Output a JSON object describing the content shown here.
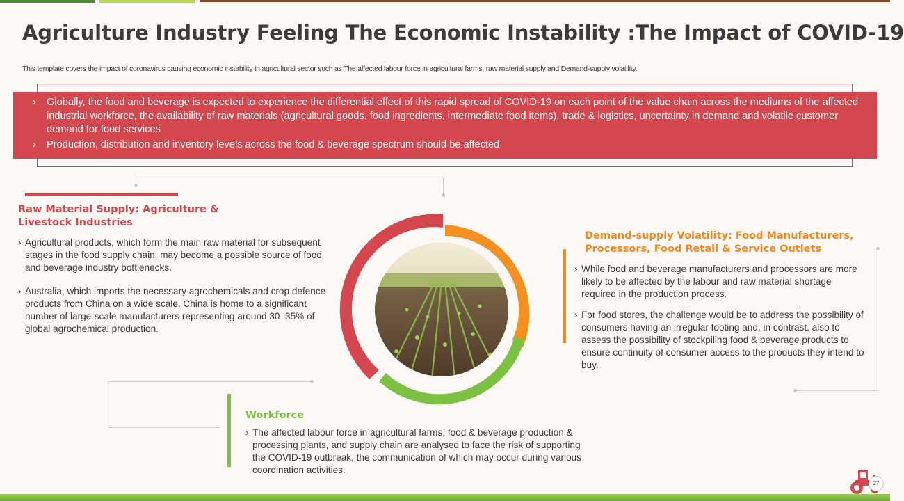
{
  "colors": {
    "red": "#d4474e",
    "orange": "#f08a1f",
    "green": "#7cc142",
    "title": "#3b3b3b",
    "top_line_green": "#4a8f2a",
    "top_line_lime": "#b8d84a",
    "top_line_brown": "#7a4a2a"
  },
  "header": {
    "title": "Agriculture Industry Feeling The Economic Instability :The Impact of COVID-19",
    "subtitle": "This template covers the impact of coronavirus causing economic instability in agricultural sector such as The affected labour force in agricultural farms, raw material supply and Demand-supply volatility."
  },
  "summary": {
    "items": [
      "Globally, the food and beverage  is expected to experience the differential effect of this rapid spread of COVID-19 on each point of the value chain across the mediums of the affected industrial workforce, the availability of raw materials (agricultural goods, food ingredients, intermediate food items), trade & logistics, uncertainty in demand and volatile customer demand for food services",
      "Production, distribution and inventory  levels across the food & beverage spectrum should be affected"
    ],
    "bullet_glyph": "›"
  },
  "raw_material": {
    "heading_line1": "Raw Material Supply: Agriculture &",
    "heading_line2": "Livestock  Industries",
    "points": [
      "Agricultural products, which form the main raw material for subsequent stages in the food supply chain, may become a possible source of food and beverage industry bottlenecks.",
      "Australia, which imports the necessary agrochemicals and crop defence products from China on a wide scale. China is home to a significant number of large-scale manufacturers representing around 30–35% of global agrochemical production."
    ]
  },
  "demand_supply": {
    "heading_line1": "Demand-supply Volatility: Food Manufacturers,",
    "heading_line2": "Processors,  Food Retail & Service Outlets",
    "points": [
      "While food and beverage manufacturers and processors are more likely to be affected by the labour and raw material shortage required in the production process.",
      "For food stores, the challenge would be to address the possibility of consumers having an irregular footing and, in contrast, also to assess the possibility of stockpiling food & beverage products to ensure continuity of consumer access to the products they intend to buy."
    ]
  },
  "workforce": {
    "heading": "Workforce",
    "points": [
      "The affected labour force in agricultural farms, food & beverage production & processing plants, and supply chain are analysed to face the risk of supporting the COVID-19 outbreak, the communication of which may occur during various coordination activities."
    ]
  },
  "center_image": {
    "description_icon": "crop-field-photo"
  },
  "footer": {
    "page_number": "27",
    "logo_icon": "tractor-icon"
  }
}
